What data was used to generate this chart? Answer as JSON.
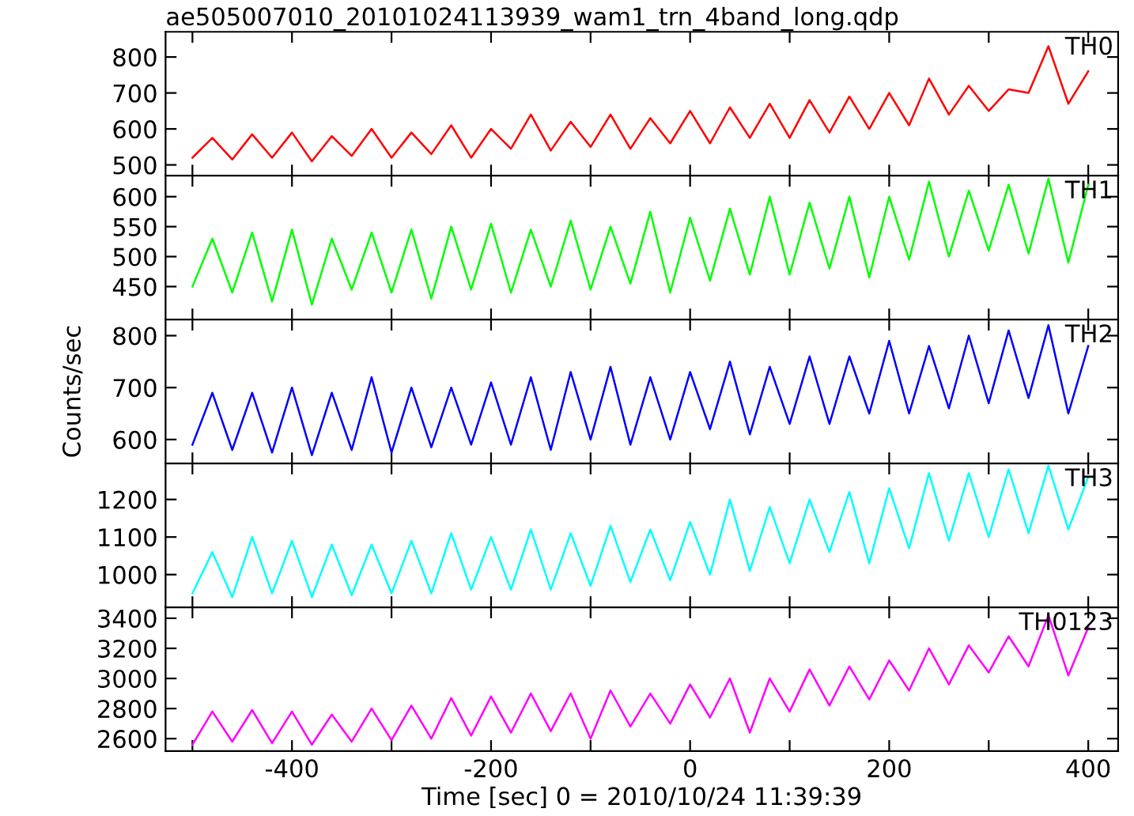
{
  "chart_data": [
    {
      "type": "line",
      "title": "ae505007010_20101024113939_wam1_trn_4band_long.qdp",
      "tick_labels": "y",
      "xlim": [
        -527,
        430
      ],
      "xticks": [
        {
          "value": -500,
          "label": null
        },
        {
          "value": -400,
          "label": null
        },
        {
          "value": -300,
          "label": null
        },
        {
          "value": -200,
          "label": null
        },
        {
          "value": -100,
          "label": null
        },
        {
          "value": 0,
          "label": null
        },
        {
          "value": 100,
          "label": null
        },
        {
          "value": 200,
          "label": null
        },
        {
          "value": 300,
          "label": null
        },
        {
          "value": 400,
          "label": null
        }
      ],
      "ylim": [
        470,
        870
      ],
      "yticks": [
        500,
        600,
        700,
        800
      ],
      "x": [
        -500,
        -480,
        -460,
        -440,
        -420,
        -400,
        -380,
        -360,
        -340,
        -320,
        -300,
        -280,
        -260,
        -240,
        -220,
        -200,
        -180,
        -160,
        -140,
        -120,
        -100,
        -80,
        -60,
        -40,
        -20,
        0,
        20,
        40,
        60,
        80,
        100,
        120,
        140,
        160,
        180,
        200,
        220,
        240,
        260,
        280,
        300,
        320,
        340,
        360,
        380,
        400
      ],
      "series": [
        {
          "name": "TH0",
          "color": "#ff0000",
          "values": [
            520,
            575,
            515,
            585,
            520,
            590,
            510,
            580,
            525,
            600,
            520,
            590,
            530,
            610,
            520,
            600,
            545,
            640,
            540,
            620,
            550,
            640,
            545,
            630,
            560,
            650,
            560,
            660,
            575,
            670,
            575,
            680,
            590,
            690,
            600,
            700,
            610,
            740,
            640,
            720,
            650,
            710,
            700,
            830,
            670,
            760
          ]
        }
      ]
    },
    {
      "type": "line",
      "tick_labels": "y",
      "xlim": [
        -527,
        430
      ],
      "xticks": [
        {
          "value": -500,
          "label": null
        },
        {
          "value": -400,
          "label": null
        },
        {
          "value": -300,
          "label": null
        },
        {
          "value": -200,
          "label": null
        },
        {
          "value": -100,
          "label": null
        },
        {
          "value": 0,
          "label": null
        },
        {
          "value": 100,
          "label": null
        },
        {
          "value": 200,
          "label": null
        },
        {
          "value": 300,
          "label": null
        },
        {
          "value": 400,
          "label": null
        }
      ],
      "ylim": [
        395,
        635
      ],
      "yticks": [
        450,
        500,
        550,
        600
      ],
      "x": [
        -500,
        -480,
        -460,
        -440,
        -420,
        -400,
        -380,
        -360,
        -340,
        -320,
        -300,
        -280,
        -260,
        -240,
        -220,
        -200,
        -180,
        -160,
        -140,
        -120,
        -100,
        -80,
        -60,
        -40,
        -20,
        0,
        20,
        40,
        60,
        80,
        100,
        120,
        140,
        160,
        180,
        200,
        220,
        240,
        260,
        280,
        300,
        320,
        340,
        360,
        380,
        400
      ],
      "series": [
        {
          "name": "TH1",
          "color": "#00ff00",
          "values": [
            450,
            530,
            440,
            540,
            425,
            545,
            420,
            530,
            445,
            540,
            440,
            545,
            430,
            550,
            445,
            555,
            440,
            545,
            450,
            560,
            445,
            550,
            455,
            575,
            440,
            565,
            460,
            580,
            470,
            600,
            470,
            590,
            480,
            600,
            465,
            600,
            495,
            625,
            500,
            610,
            510,
            620,
            505,
            630,
            490,
            620
          ]
        }
      ]
    },
    {
      "type": "line",
      "ylabel": "Counts/sec",
      "tick_labels": "y",
      "xlim": [
        -527,
        430
      ],
      "xticks": [
        {
          "value": -500,
          "label": null
        },
        {
          "value": -400,
          "label": null
        },
        {
          "value": -300,
          "label": null
        },
        {
          "value": -200,
          "label": null
        },
        {
          "value": -100,
          "label": null
        },
        {
          "value": 0,
          "label": null
        },
        {
          "value": 100,
          "label": null
        },
        {
          "value": 200,
          "label": null
        },
        {
          "value": 300,
          "label": null
        },
        {
          "value": 400,
          "label": null
        }
      ],
      "ylim": [
        554,
        831
      ],
      "yticks": [
        600,
        700,
        800
      ],
      "x": [
        -500,
        -480,
        -460,
        -440,
        -420,
        -400,
        -380,
        -360,
        -340,
        -320,
        -300,
        -280,
        -260,
        -240,
        -220,
        -200,
        -180,
        -160,
        -140,
        -120,
        -100,
        -80,
        -60,
        -40,
        -20,
        0,
        20,
        40,
        60,
        80,
        100,
        120,
        140,
        160,
        180,
        200,
        220,
        240,
        260,
        280,
        300,
        320,
        340,
        360,
        380,
        400
      ],
      "series": [
        {
          "name": "TH2",
          "color": "#0000ff",
          "values": [
            590,
            690,
            580,
            690,
            575,
            700,
            570,
            690,
            580,
            720,
            575,
            700,
            585,
            700,
            590,
            710,
            590,
            720,
            580,
            730,
            600,
            740,
            590,
            720,
            600,
            730,
            620,
            750,
            610,
            740,
            630,
            760,
            630,
            760,
            650,
            790,
            650,
            780,
            660,
            800,
            670,
            810,
            680,
            820,
            650,
            780
          ]
        }
      ]
    },
    {
      "type": "line",
      "tick_labels": "y",
      "xlim": [
        -527,
        430
      ],
      "xticks": [
        {
          "value": -500,
          "label": null
        },
        {
          "value": -400,
          "label": null
        },
        {
          "value": -300,
          "label": null
        },
        {
          "value": -200,
          "label": null
        },
        {
          "value": -100,
          "label": null
        },
        {
          "value": 0,
          "label": null
        },
        {
          "value": 100,
          "label": null
        },
        {
          "value": 200,
          "label": null
        },
        {
          "value": 300,
          "label": null
        },
        {
          "value": 400,
          "label": null
        }
      ],
      "ylim": [
        913,
        1296
      ],
      "yticks": [
        1000,
        1100,
        1200
      ],
      "x": [
        -500,
        -480,
        -460,
        -440,
        -420,
        -400,
        -380,
        -360,
        -340,
        -320,
        -300,
        -280,
        -260,
        -240,
        -220,
        -200,
        -180,
        -160,
        -140,
        -120,
        -100,
        -80,
        -60,
        -40,
        -20,
        0,
        20,
        40,
        60,
        80,
        100,
        120,
        140,
        160,
        180,
        200,
        220,
        240,
        260,
        280,
        300,
        320,
        340,
        360,
        380,
        400
      ],
      "series": [
        {
          "name": "TH3",
          "color": "#00ffff",
          "values": [
            950,
            1060,
            940,
            1100,
            950,
            1090,
            940,
            1080,
            945,
            1080,
            950,
            1090,
            950,
            1110,
            960,
            1100,
            960,
            1120,
            960,
            1110,
            970,
            1130,
            980,
            1120,
            985,
            1140,
            1000,
            1200,
            1010,
            1180,
            1030,
            1200,
            1060,
            1220,
            1030,
            1230,
            1070,
            1270,
            1090,
            1270,
            1100,
            1280,
            1110,
            1290,
            1120,
            1260
          ]
        }
      ]
    },
    {
      "type": "line",
      "xlabel": "Time [sec] 0 = 2010/10/24 11:39:39",
      "xlim": [
        -527,
        430
      ],
      "xticks": [
        {
          "value": -500,
          "label": null
        },
        -400,
        {
          "value": -300,
          "label": null
        },
        -200,
        {
          "value": -100,
          "label": null
        },
        0,
        {
          "value": 100,
          "label": null
        },
        200,
        {
          "value": 300,
          "label": null
        },
        400
      ],
      "ylim": [
        2517,
        3473
      ],
      "yticks": [
        2600,
        2800,
        3000,
        3200,
        3400
      ],
      "x": [
        -500,
        -480,
        -460,
        -440,
        -420,
        -400,
        -380,
        -360,
        -340,
        -320,
        -300,
        -280,
        -260,
        -240,
        -220,
        -200,
        -180,
        -160,
        -140,
        -120,
        -100,
        -80,
        -60,
        -40,
        -20,
        0,
        20,
        40,
        60,
        80,
        100,
        120,
        140,
        160,
        180,
        200,
        220,
        240,
        260,
        280,
        300,
        320,
        340,
        360,
        380,
        400
      ],
      "series": [
        {
          "name": "TH0123",
          "color": "#ff00ff",
          "values": [
            2560,
            2780,
            2580,
            2790,
            2570,
            2780,
            2560,
            2760,
            2580,
            2800,
            2590,
            2820,
            2600,
            2870,
            2620,
            2880,
            2640,
            2900,
            2650,
            2900,
            2600,
            2920,
            2680,
            2900,
            2700,
            2960,
            2740,
            3000,
            2640,
            3000,
            2780,
            3060,
            2820,
            3080,
            2860,
            3120,
            2920,
            3200,
            2960,
            3220,
            3040,
            3280,
            3080,
            3420,
            3020,
            3340
          ]
        }
      ]
    }
  ]
}
